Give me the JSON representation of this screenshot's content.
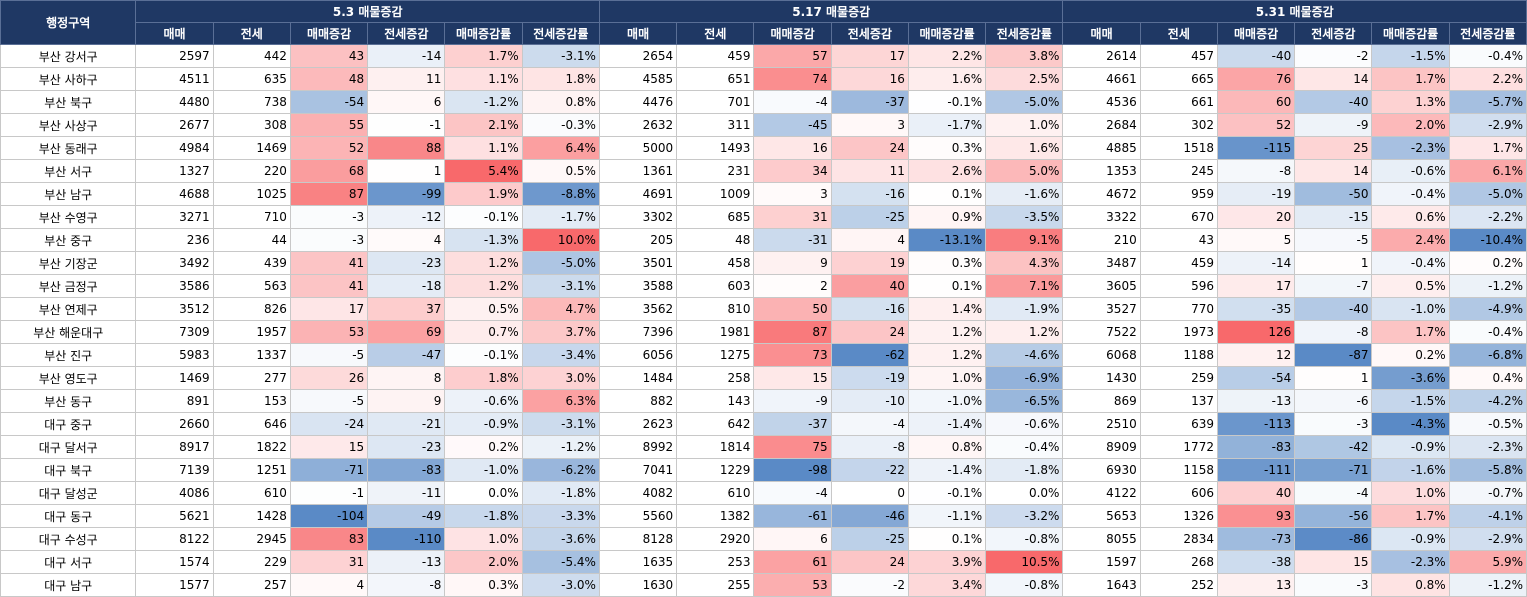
{
  "header": {
    "region_label": "행정구역",
    "groups": [
      "5.3 매물증감",
      "5.17 매물증감",
      "5.31 매물증감"
    ],
    "subcols": [
      "매매",
      "전세",
      "매매증감",
      "전세증감",
      "매매증감률",
      "전세증감률"
    ]
  },
  "rows": [
    {
      "name": "부산 강서구",
      "vals": [
        [
          "2597",
          "442",
          "43",
          "-14",
          "1.7%",
          "-3.1%"
        ],
        [
          "2654",
          "459",
          "57",
          "17",
          "2.2%",
          "3.8%"
        ],
        [
          "2614",
          "457",
          "-40",
          "-2",
          "-1.5%",
          "-0.4%"
        ]
      ]
    },
    {
      "name": "부산 사하구",
      "vals": [
        [
          "4511",
          "635",
          "48",
          "11",
          "1.1%",
          "1.8%"
        ],
        [
          "4585",
          "651",
          "74",
          "16",
          "1.6%",
          "2.5%"
        ],
        [
          "4661",
          "665",
          "76",
          "14",
          "1.7%",
          "2.2%"
        ]
      ]
    },
    {
      "name": "부산 북구",
      "vals": [
        [
          "4480",
          "738",
          "-54",
          "6",
          "-1.2%",
          "0.8%"
        ],
        [
          "4476",
          "701",
          "-4",
          "-37",
          "-0.1%",
          "-5.0%"
        ],
        [
          "4536",
          "661",
          "60",
          "-40",
          "1.3%",
          "-5.7%"
        ]
      ]
    },
    {
      "name": "부산 사상구",
      "vals": [
        [
          "2677",
          "308",
          "55",
          "-1",
          "2.1%",
          "-0.3%"
        ],
        [
          "2632",
          "311",
          "-45",
          "3",
          "-1.7%",
          "1.0%"
        ],
        [
          "2684",
          "302",
          "52",
          "-9",
          "2.0%",
          "-2.9%"
        ]
      ]
    },
    {
      "name": "부산 동래구",
      "vals": [
        [
          "4984",
          "1469",
          "52",
          "88",
          "1.1%",
          "6.4%"
        ],
        [
          "5000",
          "1493",
          "16",
          "24",
          "0.3%",
          "1.6%"
        ],
        [
          "4885",
          "1518",
          "-115",
          "25",
          "-2.3%",
          "1.7%"
        ]
      ]
    },
    {
      "name": "부산 서구",
      "vals": [
        [
          "1327",
          "220",
          "68",
          "1",
          "5.4%",
          "0.5%"
        ],
        [
          "1361",
          "231",
          "34",
          "11",
          "2.6%",
          "5.0%"
        ],
        [
          "1353",
          "245",
          "-8",
          "14",
          "-0.6%",
          "6.1%"
        ]
      ]
    },
    {
      "name": "부산 남구",
      "vals": [
        [
          "4688",
          "1025",
          "87",
          "-99",
          "1.9%",
          "-8.8%"
        ],
        [
          "4691",
          "1009",
          "3",
          "-16",
          "0.1%",
          "-1.6%"
        ],
        [
          "4672",
          "959",
          "-19",
          "-50",
          "-0.4%",
          "-5.0%"
        ]
      ]
    },
    {
      "name": "부산 수영구",
      "vals": [
        [
          "3271",
          "710",
          "-3",
          "-12",
          "-0.1%",
          "-1.7%"
        ],
        [
          "3302",
          "685",
          "31",
          "-25",
          "0.9%",
          "-3.5%"
        ],
        [
          "3322",
          "670",
          "20",
          "-15",
          "0.6%",
          "-2.2%"
        ]
      ]
    },
    {
      "name": "부산 중구",
      "vals": [
        [
          "236",
          "44",
          "-3",
          "4",
          "-1.3%",
          "10.0%"
        ],
        [
          "205",
          "48",
          "-31",
          "4",
          "-13.1%",
          "9.1%"
        ],
        [
          "210",
          "43",
          "5",
          "-5",
          "2.4%",
          "-10.4%"
        ]
      ]
    },
    {
      "name": "부산 기장군",
      "vals": [
        [
          "3492",
          "439",
          "41",
          "-23",
          "1.2%",
          "-5.0%"
        ],
        [
          "3501",
          "458",
          "9",
          "19",
          "0.3%",
          "4.3%"
        ],
        [
          "3487",
          "459",
          "-14",
          "1",
          "-0.4%",
          "0.2%"
        ]
      ]
    },
    {
      "name": "부산 금정구",
      "vals": [
        [
          "3586",
          "563",
          "41",
          "-18",
          "1.2%",
          "-3.1%"
        ],
        [
          "3588",
          "603",
          "2",
          "40",
          "0.1%",
          "7.1%"
        ],
        [
          "3605",
          "596",
          "17",
          "-7",
          "0.5%",
          "-1.2%"
        ]
      ]
    },
    {
      "name": "부산 연제구",
      "vals": [
        [
          "3512",
          "826",
          "17",
          "37",
          "0.5%",
          "4.7%"
        ],
        [
          "3562",
          "810",
          "50",
          "-16",
          "1.4%",
          "-1.9%"
        ],
        [
          "3527",
          "770",
          "-35",
          "-40",
          "-1.0%",
          "-4.9%"
        ]
      ]
    },
    {
      "name": "부산 해운대구",
      "vals": [
        [
          "7309",
          "1957",
          "53",
          "69",
          "0.7%",
          "3.7%"
        ],
        [
          "7396",
          "1981",
          "87",
          "24",
          "1.2%",
          "1.2%"
        ],
        [
          "7522",
          "1973",
          "126",
          "-8",
          "1.7%",
          "-0.4%"
        ]
      ]
    },
    {
      "name": "부산 진구",
      "vals": [
        [
          "5983",
          "1337",
          "-5",
          "-47",
          "-0.1%",
          "-3.4%"
        ],
        [
          "6056",
          "1275",
          "73",
          "-62",
          "1.2%",
          "-4.6%"
        ],
        [
          "6068",
          "1188",
          "12",
          "-87",
          "0.2%",
          "-6.8%"
        ]
      ]
    },
    {
      "name": "부산 영도구",
      "vals": [
        [
          "1469",
          "277",
          "26",
          "8",
          "1.8%",
          "3.0%"
        ],
        [
          "1484",
          "258",
          "15",
          "-19",
          "1.0%",
          "-6.9%"
        ],
        [
          "1430",
          "259",
          "-54",
          "1",
          "-3.6%",
          "0.4%"
        ]
      ]
    },
    {
      "name": "부산 동구",
      "vals": [
        [
          "891",
          "153",
          "-5",
          "9",
          "-0.6%",
          "6.3%"
        ],
        [
          "882",
          "143",
          "-9",
          "-10",
          "-1.0%",
          "-6.5%"
        ],
        [
          "869",
          "137",
          "-13",
          "-6",
          "-1.5%",
          "-4.2%"
        ]
      ]
    },
    {
      "name": "대구 중구",
      "vals": [
        [
          "2660",
          "646",
          "-24",
          "-21",
          "-0.9%",
          "-3.1%"
        ],
        [
          "2623",
          "642",
          "-37",
          "-4",
          "-1.4%",
          "-0.6%"
        ],
        [
          "2510",
          "639",
          "-113",
          "-3",
          "-4.3%",
          "-0.5%"
        ]
      ]
    },
    {
      "name": "대구 달서구",
      "vals": [
        [
          "8917",
          "1822",
          "15",
          "-23",
          "0.2%",
          "-1.2%"
        ],
        [
          "8992",
          "1814",
          "75",
          "-8",
          "0.8%",
          "-0.4%"
        ],
        [
          "8909",
          "1772",
          "-83",
          "-42",
          "-0.9%",
          "-2.3%"
        ]
      ]
    },
    {
      "name": "대구 북구",
      "vals": [
        [
          "7139",
          "1251",
          "-71",
          "-83",
          "-1.0%",
          "-6.2%"
        ],
        [
          "7041",
          "1229",
          "-98",
          "-22",
          "-1.4%",
          "-1.8%"
        ],
        [
          "6930",
          "1158",
          "-111",
          "-71",
          "-1.6%",
          "-5.8%"
        ]
      ]
    },
    {
      "name": "대구 달성군",
      "vals": [
        [
          "4086",
          "610",
          "-1",
          "-11",
          "0.0%",
          "-1.8%"
        ],
        [
          "4082",
          "610",
          "-4",
          "0",
          "-0.1%",
          "0.0%"
        ],
        [
          "4122",
          "606",
          "40",
          "-4",
          "1.0%",
          "-0.7%"
        ]
      ]
    },
    {
      "name": "대구 동구",
      "vals": [
        [
          "5621",
          "1428",
          "-104",
          "-49",
          "-1.8%",
          "-3.3%"
        ],
        [
          "5560",
          "1382",
          "-61",
          "-46",
          "-1.1%",
          "-3.2%"
        ],
        [
          "5653",
          "1326",
          "93",
          "-56",
          "1.7%",
          "-4.1%"
        ]
      ]
    },
    {
      "name": "대구 수성구",
      "vals": [
        [
          "8122",
          "2945",
          "83",
          "-110",
          "1.0%",
          "-3.6%"
        ],
        [
          "8128",
          "2920",
          "6",
          "-25",
          "0.1%",
          "-0.8%"
        ],
        [
          "8055",
          "2834",
          "-73",
          "-86",
          "-0.9%",
          "-2.9%"
        ]
      ]
    },
    {
      "name": "대구 서구",
      "vals": [
        [
          "1574",
          "229",
          "31",
          "-13",
          "2.0%",
          "-5.4%"
        ],
        [
          "1635",
          "253",
          "61",
          "24",
          "3.9%",
          "10.5%"
        ],
        [
          "1597",
          "268",
          "-38",
          "15",
          "-2.3%",
          "5.9%"
        ]
      ]
    },
    {
      "name": "대구 남구",
      "vals": [
        [
          "1577",
          "257",
          "4",
          "-8",
          "0.3%",
          "-3.0%"
        ],
        [
          "1630",
          "255",
          "53",
          "-2",
          "3.4%",
          "-0.8%"
        ],
        [
          "1643",
          "252",
          "13",
          "-3",
          "0.8%",
          "-1.2%"
        ]
      ]
    }
  ],
  "colors": {
    "header_bg": "#1f3864",
    "positive": "#f8696b",
    "negative": "#5a8ac6",
    "neutral": "#ffffff"
  }
}
